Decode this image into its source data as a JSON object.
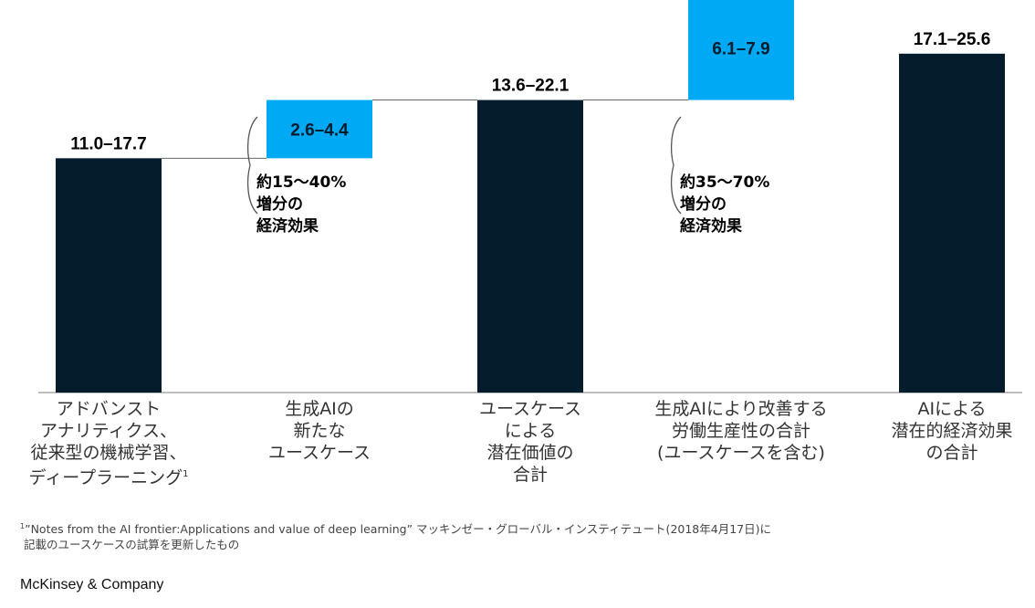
{
  "chart_data": {
    "type": "bar",
    "subtype": "waterfall",
    "ylim": [
      0,
      26
    ],
    "bars": [
      {
        "kind": "total",
        "low": 11.0,
        "high": 17.7,
        "base": 0,
        "label": "11.0–17.7",
        "color": "#051c2c",
        "category": [
          "アドバンスト",
          "アナリティクス、",
          "従来型の機械学習、",
          "ディープラーニング"
        ],
        "sup": "1"
      },
      {
        "kind": "increment",
        "low": 2.6,
        "high": 4.4,
        "base": 17.7,
        "label": "2.6–4.4",
        "color": "#00a9f4",
        "category": [
          "生成AIの",
          "新たな",
          "ユースケース"
        ],
        "annotation": [
          "約15～40%",
          "増分の",
          "経済効果"
        ]
      },
      {
        "kind": "total",
        "low": 13.6,
        "high": 22.1,
        "base": 0,
        "label": "13.6–22.1",
        "color": "#051c2c",
        "category": [
          "ユースケース",
          "による",
          "潜在価値の",
          "合計"
        ]
      },
      {
        "kind": "increment",
        "low": 6.1,
        "high": 7.9,
        "base": 22.1,
        "label": "6.1–7.9",
        "color": "#00a9f4",
        "category": [
          "生成AIにより改善する",
          "労働生産性の合計",
          "(ユースケースを含む)"
        ],
        "annotation": [
          "約35～70%",
          "増分の",
          "経済効果"
        ]
      },
      {
        "kind": "total",
        "low": 17.1,
        "high": 25.6,
        "base": 0,
        "label": "17.1–25.6",
        "color": "#051c2c",
        "category": [
          "AIによる",
          "潜在的経済効果",
          "の合計"
        ]
      }
    ],
    "connector_color": "#666666",
    "baseline_color": "#999999"
  },
  "footnote": {
    "sup": "1",
    "lines": [
      "”Notes from the AI frontier:Applications and value of deep learning” マッキンゼー・グローバル・インスティテュート(2018年4月17日)に",
      "記載のユースケースの試算を更新したもの"
    ]
  },
  "brand": "McKinsey & Company"
}
